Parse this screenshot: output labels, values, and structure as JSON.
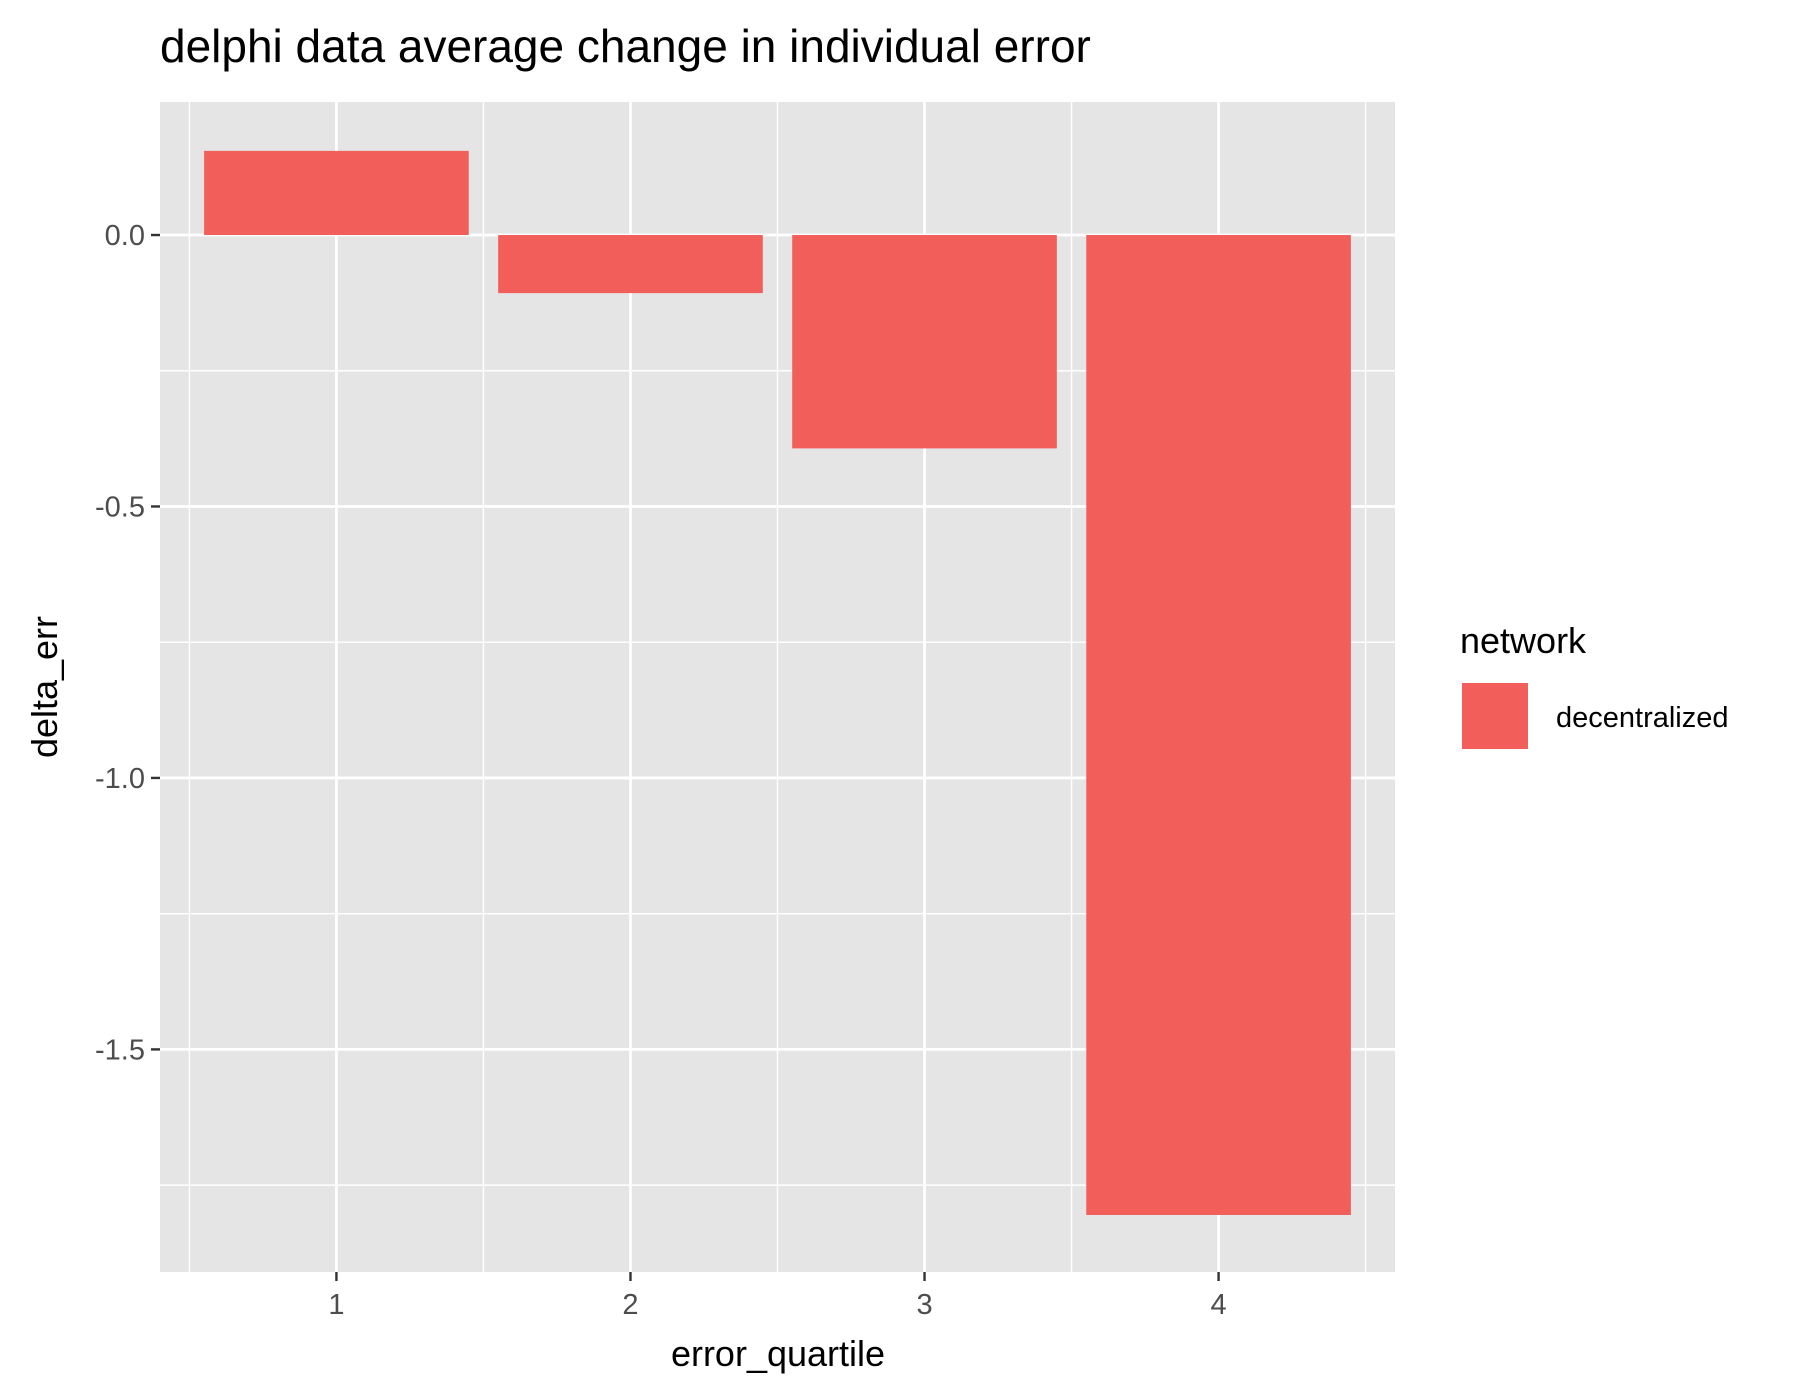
{
  "chart_data": {
    "type": "bar",
    "title": "delphi data average change in individual error",
    "xlabel": "error_quartile",
    "ylabel": "delta_err",
    "categories": [
      "1",
      "2",
      "3",
      "4"
    ],
    "series": [
      {
        "name": "decentralized",
        "values": [
          0.155,
          -0.107,
          -0.393,
          -1.805
        ]
      }
    ],
    "ylim": [
      -1.91,
      0.245
    ],
    "yticks": [
      0.0,
      -0.5,
      -1.0,
      -1.5
    ],
    "ytick_labels": [
      "0.0",
      "-0.5",
      "-1.0",
      "-1.5"
    ],
    "grid": true,
    "legend": {
      "title": "network",
      "position": "right"
    },
    "colors": {
      "panel": "#e5e5e5",
      "grid": "#ffffff",
      "bar": "#f25f5b",
      "tick": "#4d4d4d"
    }
  }
}
